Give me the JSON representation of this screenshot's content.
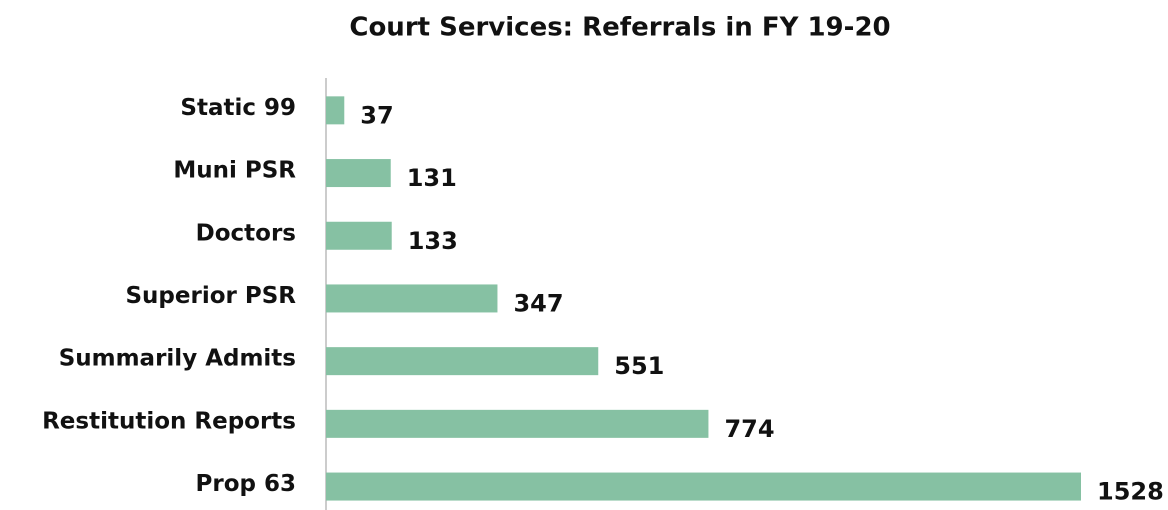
{
  "chart_data": {
    "type": "barh",
    "title": "Court Services: Referrals in FY 19-20",
    "categories": [
      "Static 99",
      "Muni PSR",
      "Doctors",
      "Superior PSR",
      "Summarily Admits",
      "Restitution Reports",
      "Prop 63"
    ],
    "values": [
      37,
      131,
      133,
      347,
      551,
      774,
      1528
    ],
    "color": "#86c1a3"
  }
}
